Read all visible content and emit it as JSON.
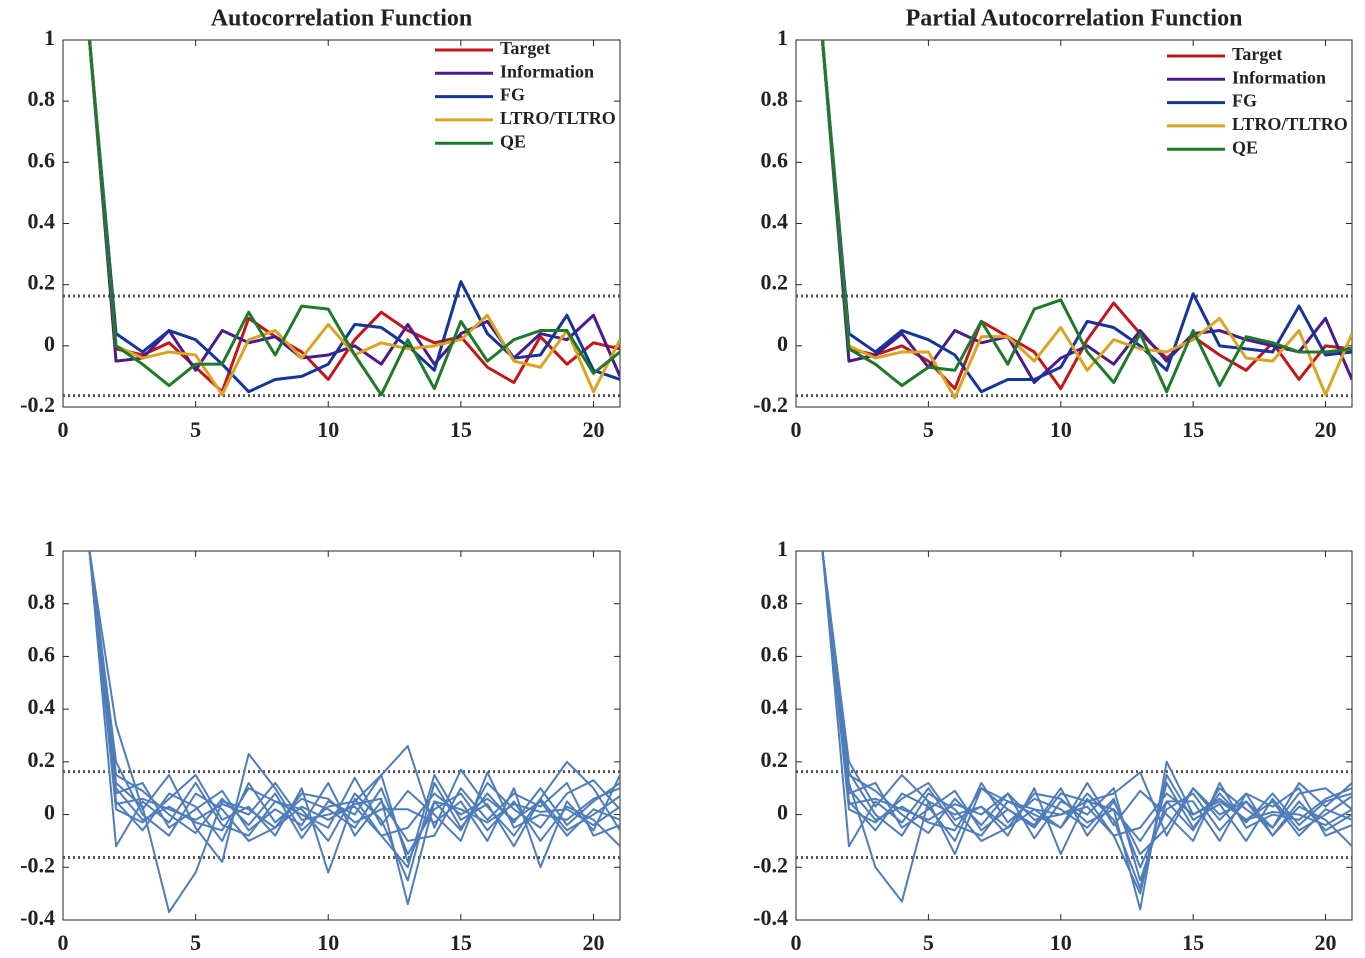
{
  "chart_data": [
    {
      "type": "line",
      "title": "Autocorrelation Function",
      "x": [
        1,
        2,
        3,
        4,
        5,
        6,
        7,
        8,
        9,
        10,
        11,
        12,
        13,
        14,
        15,
        16,
        17,
        18,
        19,
        20,
        21
      ],
      "xlim": [
        0,
        21
      ],
      "xticks": [
        0,
        5,
        10,
        15,
        20
      ],
      "ylim": [
        -0.2,
        1
      ],
      "yticks": [
        -0.2,
        0,
        0.2,
        0.4,
        0.6,
        0.8,
        1
      ],
      "reference_lines": [
        0.163,
        -0.163
      ],
      "legend": "upper-right",
      "series": [
        {
          "name": "Target",
          "color": "#c0171b",
          "values": [
            1,
            -0.01,
            -0.03,
            0.01,
            -0.07,
            -0.15,
            0.09,
            0.03,
            -0.02,
            -0.11,
            0.02,
            0.11,
            0.05,
            0.01,
            0.03,
            -0.07,
            -0.12,
            0.03,
            -0.06,
            0.01,
            -0.01
          ]
        },
        {
          "name": "Information",
          "color": "#4b1a8c",
          "values": [
            1,
            -0.05,
            -0.04,
            0.05,
            -0.08,
            0.05,
            0.01,
            0.03,
            -0.04,
            -0.03,
            0.0,
            -0.06,
            0.07,
            -0.06,
            0.04,
            0.08,
            -0.04,
            0.04,
            0.02,
            0.1,
            -0.1
          ]
        },
        {
          "name": "FG",
          "color": "#14359a",
          "values": [
            1,
            0.04,
            -0.02,
            0.05,
            0.02,
            -0.06,
            -0.15,
            -0.11,
            -0.1,
            -0.06,
            0.07,
            0.06,
            0.0,
            -0.08,
            0.21,
            0.04,
            -0.04,
            -0.03,
            0.1,
            -0.08,
            -0.11
          ]
        },
        {
          "name": "LTRO/TLTRO",
          "color": "#d9a423",
          "values": [
            1,
            0.0,
            -0.04,
            -0.02,
            -0.03,
            -0.16,
            0.02,
            0.05,
            -0.04,
            0.07,
            -0.03,
            0.01,
            -0.01,
            0.0,
            0.02,
            0.1,
            -0.05,
            -0.07,
            0.05,
            -0.15,
            0.02
          ]
        },
        {
          "name": "QE",
          "color": "#1e7a2a",
          "values": [
            1,
            0.0,
            -0.06,
            -0.13,
            -0.06,
            -0.06,
            0.11,
            -0.03,
            0.13,
            0.12,
            -0.03,
            -0.16,
            0.02,
            -0.14,
            0.08,
            -0.05,
            0.02,
            0.05,
            0.05,
            -0.09,
            -0.02
          ]
        }
      ]
    },
    {
      "type": "line",
      "title": "Partial Autocorrelation Function",
      "x": [
        1,
        2,
        3,
        4,
        5,
        6,
        7,
        8,
        9,
        10,
        11,
        12,
        13,
        14,
        15,
        16,
        17,
        18,
        19,
        20,
        21
      ],
      "xlim": [
        0,
        21
      ],
      "xticks": [
        0,
        5,
        10,
        15,
        20
      ],
      "ylim": [
        -0.2,
        1
      ],
      "yticks": [
        -0.2,
        0,
        0.2,
        0.4,
        0.6,
        0.8,
        1
      ],
      "reference_lines": [
        0.163,
        -0.163
      ],
      "legend": "upper-right",
      "series": [
        {
          "name": "Target",
          "color": "#c0171b",
          "values": [
            1,
            -0.01,
            -0.03,
            0.0,
            -0.05,
            -0.14,
            0.08,
            0.03,
            -0.02,
            -0.14,
            0.02,
            0.14,
            0.04,
            -0.04,
            0.03,
            -0.03,
            -0.08,
            0.01,
            -0.11,
            0.0,
            -0.01
          ]
        },
        {
          "name": "Information",
          "color": "#4b1a8c",
          "values": [
            1,
            -0.05,
            -0.03,
            0.04,
            -0.07,
            0.05,
            0.01,
            0.03,
            -0.12,
            -0.04,
            0.0,
            -0.06,
            0.05,
            -0.05,
            0.04,
            0.05,
            0.02,
            0.0,
            -0.02,
            0.09,
            -0.11
          ]
        },
        {
          "name": "FG",
          "color": "#14359a",
          "values": [
            1,
            0.04,
            -0.02,
            0.05,
            0.02,
            -0.03,
            -0.15,
            -0.11,
            -0.11,
            -0.07,
            0.08,
            0.06,
            0.0,
            -0.08,
            0.17,
            0.0,
            -0.01,
            -0.02,
            0.13,
            -0.03,
            -0.02
          ]
        },
        {
          "name": "LTRO/TLTRO",
          "color": "#d9a423",
          "values": [
            1,
            0.0,
            -0.04,
            -0.02,
            -0.02,
            -0.17,
            0.03,
            0.03,
            -0.05,
            0.06,
            -0.08,
            0.02,
            -0.01,
            -0.02,
            0.02,
            0.09,
            -0.04,
            -0.05,
            0.05,
            -0.16,
            0.04
          ]
        },
        {
          "name": "QE",
          "color": "#1e7a2a",
          "values": [
            1,
            -0.01,
            -0.06,
            -0.13,
            -0.07,
            -0.08,
            0.08,
            -0.06,
            0.12,
            0.15,
            -0.02,
            -0.12,
            0.04,
            -0.15,
            0.05,
            -0.13,
            0.03,
            0.01,
            -0.02,
            -0.02,
            -0.01
          ]
        }
      ]
    },
    {
      "type": "line",
      "x": [
        1,
        2,
        3,
        4,
        5,
        6,
        7,
        8,
        9,
        10,
        11,
        12,
        13,
        14,
        15,
        16,
        17,
        18,
        19,
        20,
        21
      ],
      "xlim": [
        0,
        21
      ],
      "xticks": [
        0,
        5,
        10,
        15,
        20
      ],
      "ylim": [
        -0.4,
        1
      ],
      "yticks": [
        -0.4,
        -0.2,
        0,
        0.2,
        0.4,
        0.6,
        0.8,
        1
      ],
      "reference_lines": [
        0.163,
        -0.163
      ],
      "color": "#4f7cba",
      "series": [
        {
          "values": [
            1,
            0.12,
            0.03,
            -0.37,
            -0.22,
            0.05,
            0.02,
            -0.05,
            0.03,
            -0.02,
            0.04,
            0.06,
            -0.34,
            0.05,
            0.02,
            -0.03,
            0.04,
            0.01,
            0.02,
            -0.04,
            0.03
          ]
        },
        {
          "values": [
            1,
            0.34,
            0.02,
            0.15,
            -0.05,
            -0.18,
            0.23,
            0.1,
            -0.06,
            0.03,
            0.05,
            0.15,
            0.26,
            -0.05,
            0.17,
            0.03,
            -0.08,
            0.06,
            0.2,
            0.1,
            -0.06
          ]
        },
        {
          "values": [
            1,
            -0.12,
            0.05,
            -0.03,
            0.12,
            -0.04,
            -0.08,
            0.05,
            0.02,
            -0.1,
            0.08,
            -0.02,
            -0.25,
            0.12,
            -0.05,
            0.08,
            -0.03,
            0.1,
            -0.04,
            0.05,
            0.12
          ]
        },
        {
          "values": [
            1,
            0.05,
            -0.06,
            0.08,
            0.03,
            -0.1,
            0.12,
            -0.03,
            0.06,
            0.02,
            -0.05,
            0.1,
            -0.15,
            0.02,
            0.08,
            -0.06,
            0.05,
            -0.1,
            0.03,
            -0.02,
            -0.12
          ]
        },
        {
          "values": [
            1,
            0.15,
            0.09,
            0.0,
            -0.07,
            0.06,
            -0.04,
            0.08,
            -0.09,
            0.05,
            0.0,
            0.15,
            -0.18,
            0.05,
            -0.06,
            0.12,
            0.02,
            -0.05,
            0.08,
            0.13,
            0.02
          ]
        },
        {
          "values": [
            1,
            0.02,
            -0.03,
            0.06,
            0.15,
            -0.02,
            0.03,
            -0.08,
            0.1,
            -0.22,
            0.06,
            -0.08,
            -0.2,
            0.15,
            -0.02,
            0.04,
            -0.12,
            0.06,
            -0.06,
            0.0,
            0.07
          ]
        },
        {
          "values": [
            1,
            0.08,
            0.12,
            -0.05,
            0.02,
            0.09,
            -0.06,
            0.02,
            -0.04,
            0.12,
            -0.08,
            0.05,
            -0.1,
            -0.08,
            0.1,
            -0.02,
            0.08,
            0.03,
            0.12,
            -0.08,
            -0.04
          ]
        },
        {
          "values": [
            1,
            0.1,
            -0.02,
            0.03,
            -0.03,
            -0.06,
            0.1,
            0.05,
            0.0,
            -0.05,
            0.14,
            -0.04,
            0.09,
            0.0,
            -0.1,
            0.16,
            -0.05,
            0.0,
            -0.02,
            0.06,
            0.1
          ]
        },
        {
          "values": [
            1,
            0.2,
            0.0,
            -0.08,
            0.08,
            0.02,
            -0.1,
            -0.05,
            0.08,
            0.06,
            -0.03,
            0.02,
            0.02,
            -0.03,
            0.05,
            -0.1,
            0.1,
            -0.2,
            0.05,
            -0.06,
            0.15
          ]
        },
        {
          "values": [
            1,
            0.04,
            0.06,
            0.02,
            -0.02,
            0.04,
            0.0,
            0.12,
            -0.02,
            0.0,
            0.03,
            -0.08,
            -0.05,
            0.08,
            0.0,
            0.06,
            -0.02,
            0.05,
            -0.08,
            0.02,
            -0.02
          ]
        }
      ]
    },
    {
      "type": "line",
      "x": [
        1,
        2,
        3,
        4,
        5,
        6,
        7,
        8,
        9,
        10,
        11,
        12,
        13,
        14,
        15,
        16,
        17,
        18,
        19,
        20,
        21
      ],
      "xlim": [
        0,
        21
      ],
      "xticks": [
        0,
        5,
        10,
        15,
        20
      ],
      "ylim": [
        -0.4,
        1
      ],
      "yticks": [
        -0.4,
        -0.2,
        0,
        0.2,
        0.4,
        0.6,
        0.8,
        1
      ],
      "reference_lines": [
        0.163,
        -0.163
      ],
      "color": "#4f7cba",
      "series": [
        {
          "values": [
            1,
            0.12,
            -0.2,
            -0.33,
            0.05,
            0.0,
            0.03,
            -0.05,
            0.02,
            0.0,
            0.05,
            0.02,
            -0.36,
            0.2,
            0.0,
            0.05,
            -0.02,
            0.01,
            0.0,
            -0.04,
            0.02
          ]
        },
        {
          "values": [
            1,
            0.2,
            0.03,
            0.15,
            0.05,
            -0.15,
            0.1,
            0.02,
            -0.05,
            0.08,
            0.05,
            0.08,
            0.16,
            -0.08,
            0.1,
            0.0,
            0.05,
            -0.05,
            0.12,
            0.03,
            0.12
          ]
        },
        {
          "values": [
            1,
            -0.12,
            0.05,
            -0.03,
            0.1,
            -0.04,
            -0.08,
            0.05,
            0.02,
            -0.05,
            0.08,
            -0.02,
            -0.28,
            0.12,
            -0.05,
            0.08,
            -0.03,
            0.08,
            -0.04,
            0.05,
            0.08
          ]
        },
        {
          "values": [
            1,
            0.05,
            -0.06,
            0.08,
            0.03,
            -0.1,
            0.12,
            -0.03,
            0.06,
            0.02,
            -0.05,
            0.06,
            -0.2,
            0.02,
            0.08,
            -0.06,
            0.05,
            -0.08,
            0.03,
            -0.02,
            -0.12
          ]
        },
        {
          "values": [
            1,
            0.15,
            0.09,
            0.0,
            -0.07,
            0.06,
            -0.04,
            0.08,
            -0.09,
            0.05,
            0.0,
            0.1,
            -0.25,
            0.05,
            -0.06,
            0.1,
            0.02,
            -0.05,
            0.08,
            0.1,
            0.02
          ]
        },
        {
          "values": [
            1,
            0.02,
            -0.03,
            0.06,
            0.12,
            -0.02,
            0.03,
            -0.08,
            0.1,
            -0.15,
            0.06,
            -0.08,
            -0.3,
            0.15,
            -0.02,
            0.04,
            -0.1,
            0.06,
            -0.06,
            0.0,
            0.07
          ]
        },
        {
          "values": [
            1,
            0.08,
            0.12,
            -0.05,
            0.02,
            0.09,
            -0.06,
            0.02,
            -0.04,
            0.1,
            -0.08,
            0.05,
            -0.15,
            -0.05,
            0.1,
            -0.02,
            0.08,
            0.03,
            0.1,
            -0.08,
            -0.04
          ]
        },
        {
          "values": [
            1,
            0.1,
            -0.02,
            0.03,
            -0.03,
            -0.06,
            0.1,
            0.05,
            0.0,
            -0.05,
            0.12,
            -0.04,
            0.09,
            0.0,
            -0.1,
            0.12,
            -0.05,
            0.0,
            -0.02,
            0.06,
            0.1
          ]
        },
        {
          "values": [
            1,
            0.16,
            0.0,
            -0.08,
            0.08,
            0.02,
            -0.1,
            -0.05,
            0.08,
            0.06,
            -0.03,
            0.02,
            -0.1,
            0.05,
            0.05,
            -0.1,
            0.08,
            -0.08,
            0.05,
            -0.06,
            0.0
          ]
        },
        {
          "values": [
            1,
            0.04,
            0.06,
            0.02,
            -0.02,
            0.04,
            0.0,
            0.08,
            -0.02,
            0.0,
            0.03,
            -0.08,
            -0.05,
            0.08,
            0.0,
            0.06,
            -0.02,
            0.05,
            -0.08,
            0.02,
            -0.02
          ]
        }
      ]
    }
  ]
}
